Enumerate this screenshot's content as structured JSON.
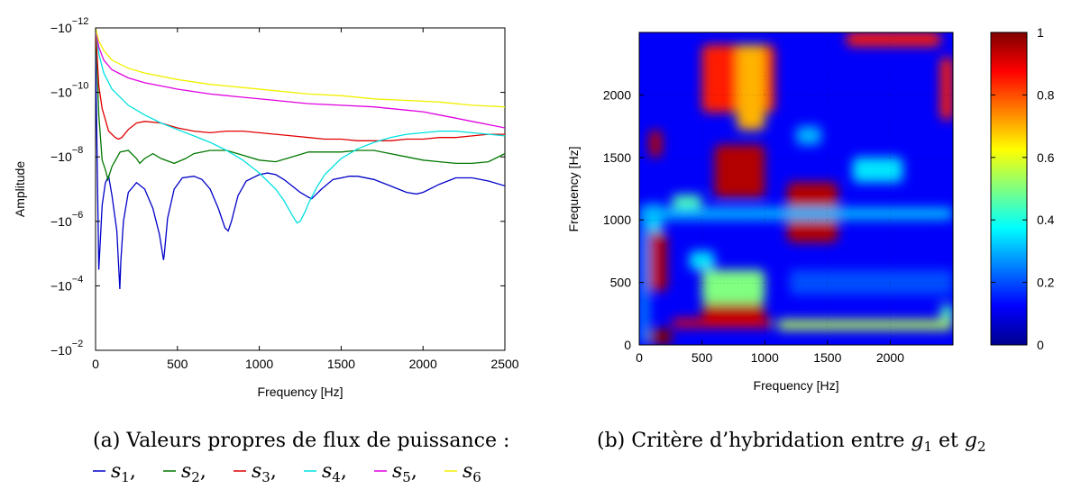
{
  "chart_data": [
    {
      "type": "line",
      "caption": "(a) Valeurs propres de flux de puissance :",
      "xlabel": "Frequency [Hz]",
      "ylabel": "Amplitude",
      "xlim": [
        0,
        2500
      ],
      "xticks": [
        "0",
        "500",
        "1000",
        "1500",
        "2000",
        "2500"
      ],
      "yscale": "log (negative values)",
      "ylim_log10": [
        -12,
        -2
      ],
      "yticks": [
        {
          "mant": "−10",
          "exp": "−12"
        },
        {
          "mant": "−10",
          "exp": "−10"
        },
        {
          "mant": "−10",
          "exp": "−8"
        },
        {
          "mant": "−10",
          "exp": "−6"
        },
        {
          "mant": "−10",
          "exp": "−4"
        },
        {
          "mant": "−10",
          "exp": "−2"
        }
      ],
      "grid": false,
      "series": [
        {
          "name": "s1",
          "color": "#0000c8",
          "x": [
            0,
            20,
            40,
            60,
            70,
            80,
            100,
            130,
            148,
            155,
            170,
            200,
            250,
            300,
            350,
            390,
            415,
            420,
            440,
            480,
            530,
            600,
            650,
            700,
            750,
            790,
            810,
            830,
            870,
            920,
            1000,
            1050,
            1100,
            1150,
            1200,
            1250,
            1300,
            1320,
            1340,
            1380,
            1450,
            1550,
            1600,
            1700,
            1800,
            1900,
            1960,
            2000,
            2100,
            2200,
            2300,
            2400,
            2500
          ],
          "y": [
            -11.2,
            -4.5,
            -6.5,
            -7.2,
            -7.3,
            -7.4,
            -6.8,
            -5.7,
            -3.9,
            -4.8,
            -6.0,
            -6.9,
            -7.2,
            -7.0,
            -6.4,
            -5.6,
            -4.8,
            -5.0,
            -6.1,
            -7.0,
            -7.35,
            -7.4,
            -7.3,
            -7.0,
            -6.4,
            -5.8,
            -5.7,
            -6.0,
            -6.8,
            -7.25,
            -7.45,
            -7.5,
            -7.45,
            -7.3,
            -7.1,
            -6.9,
            -6.75,
            -6.7,
            -6.8,
            -7.0,
            -7.3,
            -7.4,
            -7.4,
            -7.3,
            -7.1,
            -6.9,
            -6.85,
            -6.9,
            -7.15,
            -7.35,
            -7.35,
            -7.25,
            -7.1
          ]
        },
        {
          "name": "s2",
          "color": "#007800",
          "x": [
            0,
            20,
            40,
            60,
            75,
            100,
            150,
            200,
            250,
            270,
            300,
            350,
            400,
            480,
            550,
            600,
            700,
            800,
            900,
            1000,
            1100,
            1200,
            1300,
            1400,
            1500,
            1600,
            1700,
            1800,
            1900,
            2000,
            2100,
            2200,
            2300,
            2400,
            2500
          ],
          "y": [
            -12.0,
            -9.3,
            -7.9,
            -7.6,
            -7.3,
            -7.7,
            -8.15,
            -8.2,
            -7.95,
            -7.8,
            -7.95,
            -8.1,
            -7.95,
            -7.8,
            -7.95,
            -8.1,
            -8.2,
            -8.2,
            -8.05,
            -7.9,
            -7.85,
            -8.0,
            -8.15,
            -8.15,
            -8.15,
            -8.2,
            -8.2,
            -8.1,
            -8.0,
            -7.9,
            -7.85,
            -7.8,
            -7.8,
            -7.85,
            -8.1
          ]
        },
        {
          "name": "s3",
          "color": "#e00000",
          "x": [
            0,
            20,
            40,
            80,
            120,
            140,
            160,
            200,
            250,
            300,
            400,
            500,
            600,
            700,
            800,
            900,
            1000,
            1100,
            1200,
            1300,
            1400,
            1500,
            1600,
            1700,
            1800,
            1900,
            2000,
            2100,
            2200,
            2300,
            2400,
            2500
          ],
          "y": [
            -12.0,
            -10.2,
            -9.5,
            -8.8,
            -8.6,
            -8.55,
            -8.6,
            -8.85,
            -9.05,
            -9.1,
            -9.05,
            -8.9,
            -8.8,
            -8.75,
            -8.8,
            -8.8,
            -8.75,
            -8.7,
            -8.65,
            -8.6,
            -8.55,
            -8.55,
            -8.5,
            -8.5,
            -8.5,
            -8.55,
            -8.55,
            -8.6,
            -8.6,
            -8.65,
            -8.7,
            -8.7
          ]
        },
        {
          "name": "s4",
          "color": "#00e0e0",
          "x": [
            0,
            20,
            50,
            100,
            200,
            300,
            400,
            500,
            600,
            700,
            800,
            900,
            1000,
            1100,
            1150,
            1200,
            1230,
            1250,
            1280,
            1300,
            1350,
            1400,
            1500,
            1600,
            1700,
            1800,
            1900,
            2000,
            2100,
            2200,
            2300,
            2400,
            2500
          ],
          "y": [
            -12.0,
            -11.2,
            -10.6,
            -10.1,
            -9.6,
            -9.3,
            -9.05,
            -8.85,
            -8.65,
            -8.45,
            -8.2,
            -7.9,
            -7.5,
            -7.0,
            -6.65,
            -6.2,
            -5.95,
            -6.0,
            -6.3,
            -6.55,
            -7.05,
            -7.45,
            -7.95,
            -8.25,
            -8.45,
            -8.6,
            -8.7,
            -8.75,
            -8.8,
            -8.8,
            -8.75,
            -8.7,
            -8.65
          ]
        },
        {
          "name": "s5",
          "color": "#e000e0",
          "x": [
            0,
            20,
            50,
            100,
            200,
            300,
            400,
            500,
            700,
            900,
            1100,
            1300,
            1500,
            1700,
            1900,
            2000,
            2100,
            2200,
            2300,
            2400,
            2500
          ],
          "y": [
            -12.0,
            -11.4,
            -11.0,
            -10.7,
            -10.45,
            -10.3,
            -10.2,
            -10.1,
            -9.95,
            -9.85,
            -9.75,
            -9.65,
            -9.6,
            -9.55,
            -9.45,
            -9.4,
            -9.3,
            -9.2,
            -9.1,
            -9.0,
            -8.9
          ]
        },
        {
          "name": "s6",
          "color": "#f0f000",
          "x": [
            0,
            20,
            50,
            100,
            200,
            300,
            400,
            500,
            700,
            900,
            1100,
            1300,
            1500,
            1700,
            1900,
            2100,
            2300,
            2500
          ],
          "y": [
            -12.0,
            -11.6,
            -11.3,
            -11.0,
            -10.75,
            -10.6,
            -10.5,
            -10.4,
            -10.25,
            -10.15,
            -10.05,
            -9.95,
            -9.9,
            -9.8,
            -9.75,
            -9.7,
            -9.6,
            -9.55
          ]
        }
      ],
      "legend_items": [
        {
          "sub": "1",
          "sep": ","
        },
        {
          "sub": "2",
          "sep": ","
        },
        {
          "sub": "3",
          "sep": ","
        },
        {
          "sub": "4",
          "sep": ","
        },
        {
          "sub": "5",
          "sep": ","
        },
        {
          "sub": "6",
          "sep": ""
        }
      ]
    },
    {
      "type": "heatmap",
      "caption_prefix": "(b) Critère d’hybridation entre ",
      "caption_g": "g",
      "caption_sub1": "1",
      "caption_mid": " et ",
      "caption_sub2": "2",
      "xlabel": "Frequency [Hz]",
      "ylabel": "Frequency [Hz]",
      "xlim": [
        0,
        2500
      ],
      "ylim": [
        0,
        2500
      ],
      "xticks": [
        "0",
        "500",
        "1000",
        "1500",
        "2000"
      ],
      "yticks": [
        "0",
        "500",
        "1000",
        "1500",
        "2000"
      ],
      "colormap": "jet",
      "clim": [
        0,
        1
      ],
      "colorbar_ticks": [
        "0",
        "0.2",
        "0.4",
        "0.6",
        "0.8",
        "1"
      ],
      "background_value": 0.12,
      "blocks": [
        {
          "x": [
            0,
            80
          ],
          "y": [
            1020,
            1130
          ],
          "v": 0.55
        },
        {
          "x": [
            0,
            80
          ],
          "y": [
            0,
            1130
          ],
          "v": 0.25
        },
        {
          "x": [
            80,
            180
          ],
          "y": [
            1500,
            1720
          ],
          "v": 0.95
        },
        {
          "x": [
            80,
            220
          ],
          "y": [
            430,
            900
          ],
          "v": 0.95
        },
        {
          "x": [
            80,
            180
          ],
          "y": [
            900,
            1130
          ],
          "v": 0.35
        },
        {
          "x": [
            80,
            260
          ],
          "y": [
            0,
            130
          ],
          "v": 1.0
        },
        {
          "x": [
            260,
            1060
          ],
          "y": [
            140,
            210
          ],
          "v": 0.9
        },
        {
          "x": [
            500,
            1000
          ],
          "y": [
            210,
            330
          ],
          "v": 0.95
        },
        {
          "x": [
            500,
            1000
          ],
          "y": [
            330,
            600
          ],
          "v": 0.5
        },
        {
          "x": [
            500,
            1080
          ],
          "y": [
            1860,
            2400
          ],
          "v": 0.85
        },
        {
          "x": [
            780,
            1000
          ],
          "y": [
            1720,
            2400
          ],
          "v": 0.7
        },
        {
          "x": [
            600,
            1000
          ],
          "y": [
            1180,
            1600
          ],
          "v": 0.95
        },
        {
          "x": [
            400,
            600
          ],
          "y": [
            600,
            750
          ],
          "v": 0.35
        },
        {
          "x": [
            260,
            500
          ],
          "y": [
            1100,
            1200
          ],
          "v": 0.45
        },
        {
          "x": [
            1180,
            1580
          ],
          "y": [
            820,
            1300
          ],
          "v": 0.95
        },
        {
          "x": [
            1580,
            2400
          ],
          "y": [
            1000,
            1080
          ],
          "v": 0.55
        },
        {
          "x": [
            1700,
            2100
          ],
          "y": [
            1300,
            1500
          ],
          "v": 0.35
        },
        {
          "x": [
            1650,
            2400
          ],
          "y": [
            2390,
            2500
          ],
          "v": 0.85
        },
        {
          "x": [
            2400,
            2500
          ],
          "y": [
            1800,
            2300
          ],
          "v": 0.85
        },
        {
          "x": [
            1250,
            1450
          ],
          "y": [
            1600,
            1750
          ],
          "v": 0.3
        },
        {
          "x": [
            1100,
            2500
          ],
          "y": [
            120,
            200
          ],
          "v": 0.55
        },
        {
          "x": [
            2400,
            2500
          ],
          "y": [
            200,
            320
          ],
          "v": 0.45
        },
        {
          "x": [
            1200,
            2500
          ],
          "y": [
            400,
            600
          ],
          "v": 0.2
        },
        {
          "x": [
            0,
            2500
          ],
          "y": [
            1000,
            1100
          ],
          "v": 0.3
        }
      ]
    }
  ]
}
